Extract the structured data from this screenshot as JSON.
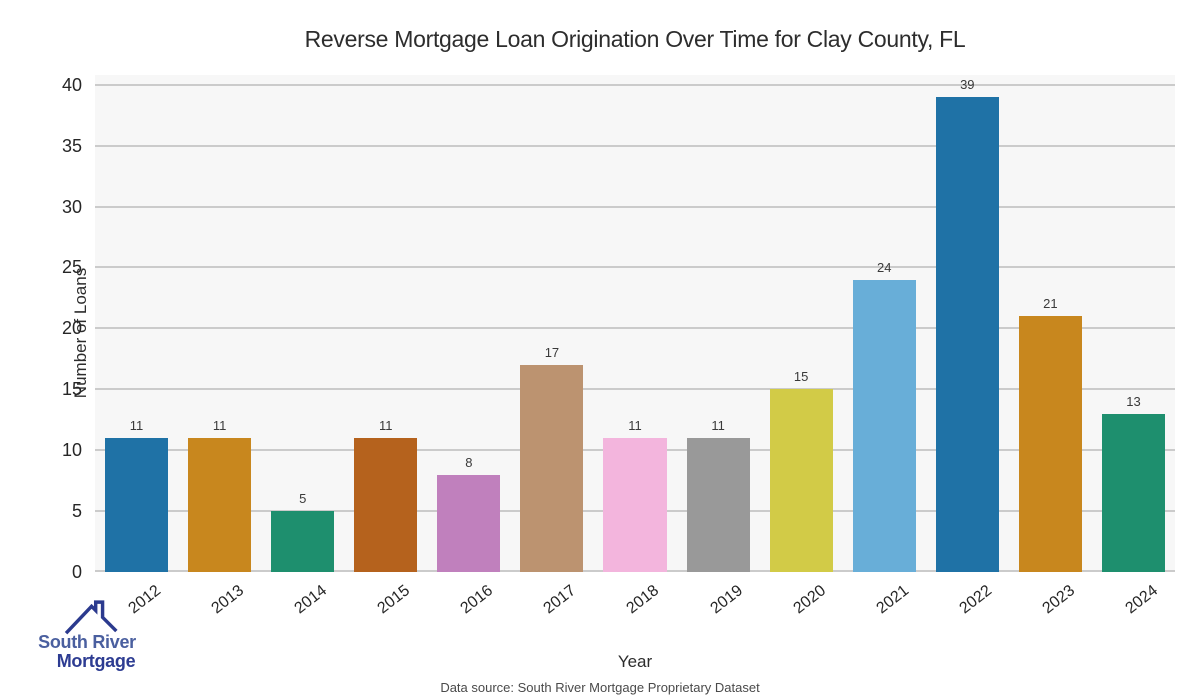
{
  "chart_data": {
    "type": "bar",
    "title": "Reverse Mortgage Loan Origination Over Time for Clay County, FL",
    "xlabel": "Year",
    "ylabel": "Number of Loans",
    "categories": [
      "2012",
      "2013",
      "2014",
      "2015",
      "2016",
      "2017",
      "2018",
      "2019",
      "2020",
      "2021",
      "2022",
      "2023",
      "2024"
    ],
    "values": [
      11,
      11,
      5,
      11,
      8,
      17,
      11,
      11,
      15,
      24,
      39,
      21,
      13
    ],
    "bar_colors": [
      "#1f72a6",
      "#c8871e",
      "#1e8f6e",
      "#b5621d",
      "#c080bd",
      "#bc9370",
      "#f3b5dd",
      "#999999",
      "#d2cb47",
      "#68aed8",
      "#1f72a6",
      "#c8871e",
      "#1e8f6e"
    ],
    "yticks": [
      0,
      5,
      10,
      15,
      20,
      25,
      30,
      35,
      40
    ],
    "ylim": [
      0,
      40.8
    ],
    "grid": "horizontal",
    "legend": "none",
    "plot_background": "#f7f7f7",
    "gridline_color": "#cbcbcb"
  },
  "footer": {
    "data_source": "Data source: South River Mortgage Proprietary Dataset"
  },
  "logo": {
    "line1": "South River",
    "line2": "Mortgage",
    "line1_color": "#4a5f9f",
    "line2_color": "#2d3c92",
    "roof_color": "#2b3a8e"
  }
}
